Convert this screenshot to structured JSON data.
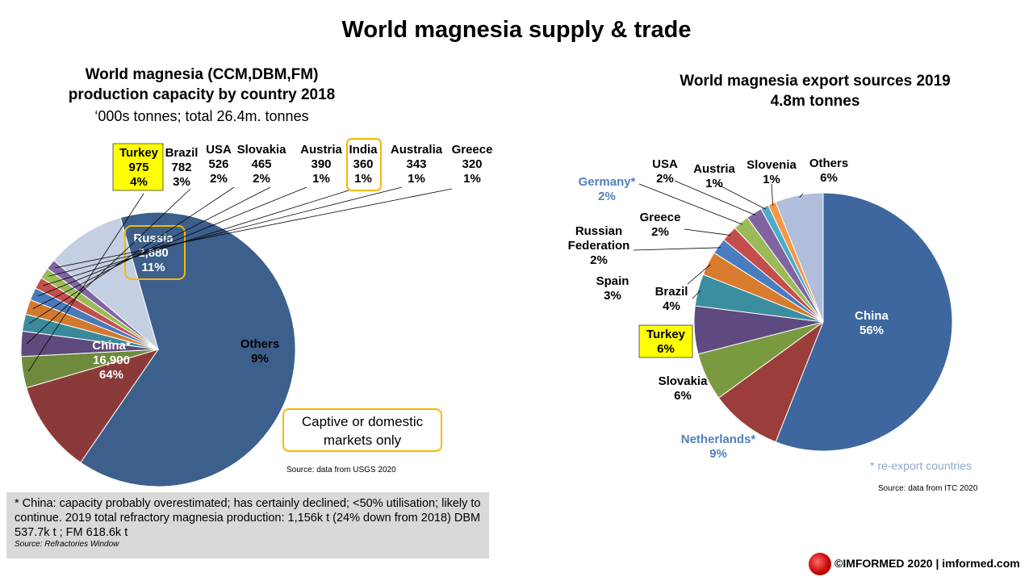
{
  "page": {
    "title": "World magnesia supply & trade",
    "footer": "©IMFORMED 2020  | imformed.com",
    "colors": {
      "highlight_yellow": "#ffff00",
      "highlight_border": "#f5b800",
      "reexport_blue": "#4f81bd"
    }
  },
  "left_chart": {
    "title_line1": "World magnesia (CCM,DBM,FM)",
    "title_line2": "production capacity by country 2018",
    "subtitle": "‘000s tonnes; total 26.4m. tonnes",
    "source": "Source: data from USGS 2020",
    "captive_note": "Captive or domestic markets only"
  },
  "right_chart": {
    "title_line1": "World magnesia export sources 2019",
    "title_line2": "4.8m tonnes",
    "source": "Source: data from ITC 2020",
    "reexport_note": "* re-export countries"
  },
  "note": {
    "text": "* China: capacity probably overestimated; has certainly declined; <50% utilisation; likely to continue.  2019 total refractory magnesia production: 1,156k t (24% down from 2018) DBM 537.7k t ; FM 618.6k t",
    "source": "Source: Refractories Window"
  },
  "chart_data": [
    {
      "type": "pie",
      "title": "World magnesia (CCM,DBM,FM) production capacity by country 2018",
      "subtitle": "‘000s tonnes; total 26.4m. tonnes",
      "slices": [
        {
          "name": "China*",
          "value": 16900,
          "pct": "64%",
          "color": "#3d5f8c",
          "value_label": "16,900"
        },
        {
          "name": "Russia",
          "value": 2880,
          "pct": "11%",
          "color": "#8b3a3a",
          "value_label": "2,880"
        },
        {
          "name": "Turkey",
          "value": 975,
          "pct": "4%",
          "color": "#6e8a3c",
          "value_label": "975"
        },
        {
          "name": "Brazil",
          "value": 782,
          "pct": "3%",
          "color": "#5e4a7c",
          "value_label": "782"
        },
        {
          "name": "USA",
          "value": 526,
          "pct": "2%",
          "color": "#3b8a9c",
          "value_label": "526"
        },
        {
          "name": "Slovakia",
          "value": 465,
          "pct": "2%",
          "color": "#d07a30",
          "value_label": "465"
        },
        {
          "name": "Austria",
          "value": 390,
          "pct": "1%",
          "color": "#4a78b8",
          "value_label": "390"
        },
        {
          "name": "India",
          "value": 360,
          "pct": "1%",
          "color": "#c0504d",
          "value_label": "360"
        },
        {
          "name": "Australia",
          "value": 343,
          "pct": "1%",
          "color": "#9bbb59",
          "value_label": "343"
        },
        {
          "name": "Greece",
          "value": 320,
          "pct": "1%",
          "color": "#8064a2",
          "value_label": "320"
        },
        {
          "name": "Others",
          "value": 2459,
          "pct": "9%",
          "color": "#c5cfe3",
          "value_label": ""
        }
      ]
    },
    {
      "type": "pie",
      "title": "World magnesia export sources 2019",
      "subtitle": "4.8m tonnes",
      "slices": [
        {
          "name": "China",
          "value": 56,
          "pct": "56%",
          "color": "#3d679e"
        },
        {
          "name": "Netherlands*",
          "value": 9,
          "pct": "9%",
          "color": "#9b3d3a"
        },
        {
          "name": "Slovakia",
          "value": 6,
          "pct": "6%",
          "color": "#7a9a40"
        },
        {
          "name": "Turkey",
          "value": 6,
          "pct": "6%",
          "color": "#5e4a80"
        },
        {
          "name": "Brazil",
          "value": 4,
          "pct": "4%",
          "color": "#3b8ea0"
        },
        {
          "name": "Spain",
          "value": 3,
          "pct": "3%",
          "color": "#d97b2e"
        },
        {
          "name": "Russian Federation",
          "value": 2,
          "pct": "2%",
          "color": "#4a7cc0"
        },
        {
          "name": "Greece",
          "value": 2,
          "pct": "2%",
          "color": "#c44e4b"
        },
        {
          "name": "Germany*",
          "value": 2,
          "pct": "2%",
          "color": "#9bbb59"
        },
        {
          "name": "USA",
          "value": 2,
          "pct": "2%",
          "color": "#8064a2"
        },
        {
          "name": "Austria",
          "value": 1,
          "pct": "1%",
          "color": "#4bacc6"
        },
        {
          "name": "Slovenia",
          "value": 1,
          "pct": "1%",
          "color": "#f79646"
        },
        {
          "name": "Others",
          "value": 6,
          "pct": "6%",
          "color": "#b0bedb"
        }
      ]
    }
  ]
}
